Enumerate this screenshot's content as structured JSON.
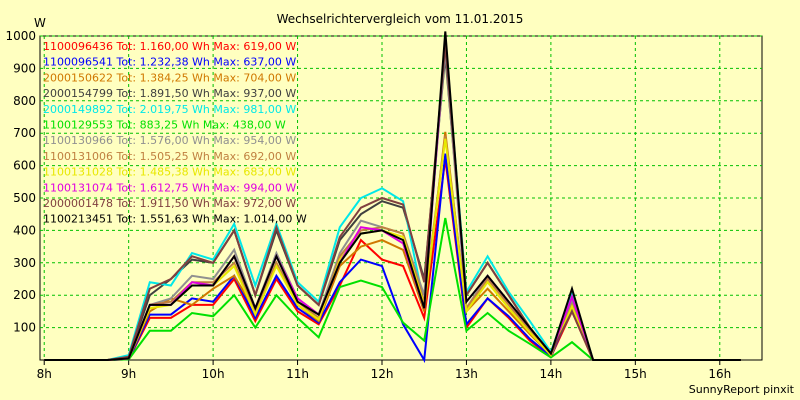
{
  "chart_data": {
    "type": "line",
    "title": "Wechselrichtervergleich vom 11.01.2015",
    "ylabel": "W",
    "xlabel": "",
    "ylim": [
      0,
      1000
    ],
    "xlim": [
      7.95,
      16.5
    ],
    "yticks": [
      100,
      200,
      300,
      400,
      500,
      600,
      700,
      800,
      900,
      1000
    ],
    "xticks": [
      "8h",
      "9h",
      "10h",
      "11h",
      "12h",
      "13h",
      "14h",
      "15h",
      "16h"
    ],
    "grid": true,
    "legend_position": "top-left",
    "x": [
      8.0,
      8.25,
      8.5,
      8.75,
      9.0,
      9.25,
      9.5,
      9.75,
      10.0,
      10.25,
      10.5,
      10.75,
      11.0,
      11.25,
      11.5,
      11.75,
      12.0,
      12.25,
      12.5,
      12.75,
      13.0,
      13.25,
      13.5,
      13.75,
      14.0,
      14.25,
      14.5,
      14.75,
      15.0,
      15.25,
      15.5,
      15.75,
      16.0,
      16.25
    ],
    "series": [
      {
        "name": "1100096436 Tot: 1.160,00 Wh Max: 619,00 W",
        "color": "#ff0000",
        "values": [
          0,
          0,
          0,
          0,
          2,
          130,
          130,
          170,
          170,
          250,
          120,
          250,
          150,
          110,
          230,
          370,
          310,
          290,
          130,
          620,
          100,
          190,
          130,
          60,
          10,
          150,
          0,
          0,
          0,
          0,
          0,
          0,
          0,
          0
        ]
      },
      {
        "name": "1100096541 Tot: 1.232,38 Wh Max: 637,00 W",
        "color": "#0000ff",
        "values": [
          0,
          0,
          0,
          0,
          2,
          140,
          140,
          190,
          180,
          260,
          130,
          260,
          160,
          115,
          240,
          310,
          290,
          110,
          0,
          637,
          110,
          190,
          135,
          65,
          12,
          160,
          0,
          0,
          0,
          0,
          0,
          0,
          0,
          0
        ]
      },
      {
        "name": "2000150622 Tot: 1.384,25 Wh Max: 704,00 W",
        "color": "#d07800",
        "values": [
          0,
          0,
          0,
          0,
          5,
          150,
          190,
          170,
          220,
          260,
          150,
          300,
          170,
          120,
          290,
          350,
          370,
          340,
          150,
          704,
          150,
          220,
          150,
          80,
          15,
          170,
          0,
          0,
          0,
          0,
          0,
          0,
          0,
          0
        ]
      },
      {
        "name": "2000154799 Tot: 1.891,50 Wh Max: 937,00 W",
        "color": "#404040",
        "values": [
          0,
          0,
          0,
          0,
          10,
          200,
          250,
          310,
          300,
          400,
          200,
          400,
          230,
          170,
          370,
          450,
          490,
          470,
          250,
          937,
          200,
          300,
          200,
          100,
          20,
          200,
          0,
          0,
          0,
          0,
          0,
          0,
          0,
          0
        ]
      },
      {
        "name": "2000149892 Tot: 2.019,75 Wh Max: 981,00 W",
        "color": "#00e8e8",
        "values": [
          0,
          0,
          0,
          0,
          15,
          240,
          230,
          330,
          310,
          420,
          230,
          420,
          240,
          180,
          410,
          500,
          530,
          490,
          170,
          981,
          210,
          320,
          210,
          120,
          25,
          210,
          0,
          0,
          0,
          0,
          0,
          0,
          0,
          0
        ]
      },
      {
        "name": "1100129553 Tot: 883,25 Wh Max: 438,00 W",
        "color": "#00e000",
        "values": [
          0,
          0,
          0,
          0,
          2,
          90,
          90,
          145,
          135,
          200,
          100,
          200,
          130,
          70,
          225,
          245,
          225,
          115,
          60,
          438,
          90,
          145,
          90,
          50,
          8,
          55,
          0,
          0,
          0,
          0,
          0,
          0,
          0,
          0
        ]
      },
      {
        "name": "1100130966 Tot: 1.576,00 Wh Max: 954,00 W",
        "color": "#909090",
        "values": [
          0,
          0,
          0,
          0,
          5,
          170,
          190,
          260,
          250,
          340,
          160,
          330,
          190,
          140,
          330,
          430,
          410,
          390,
          200,
          954,
          160,
          260,
          175,
          90,
          15,
          180,
          0,
          0,
          0,
          0,
          0,
          0,
          0,
          0
        ]
      },
      {
        "name": "1100131006 Tot: 1.505,25 Wh Max: 692,00 W",
        "color": "#c08040",
        "values": [
          0,
          0,
          0,
          0,
          5,
          170,
          180,
          240,
          240,
          300,
          150,
          300,
          180,
          130,
          320,
          400,
          410,
          390,
          180,
          692,
          160,
          250,
          170,
          90,
          15,
          170,
          0,
          0,
          0,
          0,
          0,
          0,
          0,
          0
        ]
      },
      {
        "name": "1100131028 Tot: 1.485,38 Wh Max: 683,00 W",
        "color": "#e8e800",
        "values": [
          0,
          0,
          0,
          0,
          5,
          160,
          170,
          230,
          230,
          290,
          140,
          290,
          170,
          125,
          310,
          390,
          400,
          380,
          170,
          683,
          150,
          240,
          160,
          85,
          15,
          165,
          0,
          0,
          0,
          0,
          0,
          0,
          0,
          0
        ]
      },
      {
        "name": "1100131074 Tot: 1.612,75 Wh Max: 994,00 W",
        "color": "#e000e0",
        "values": [
          0,
          0,
          0,
          0,
          5,
          170,
          170,
          240,
          230,
          320,
          160,
          320,
          190,
          140,
          300,
          410,
          400,
          360,
          160,
          994,
          180,
          260,
          180,
          100,
          20,
          195,
          0,
          0,
          0,
          0,
          0,
          0,
          0,
          0
        ]
      },
      {
        "name": "2000001478 Tot: 1.911,50 Wh Max: 972,00 W",
        "color": "#804040",
        "values": [
          0,
          0,
          0,
          0,
          10,
          220,
          250,
          320,
          300,
          400,
          200,
          410,
          230,
          170,
          380,
          470,
          500,
          480,
          240,
          972,
          200,
          300,
          200,
          100,
          20,
          150,
          0,
          0,
          0,
          0,
          0,
          0,
          0,
          0
        ]
      },
      {
        "name": "1100213451 Tot: 1.551,63 Wh Max: 1.014,00 W",
        "color": "#000000",
        "values": [
          0,
          0,
          0,
          0,
          5,
          170,
          170,
          230,
          230,
          320,
          160,
          320,
          180,
          140,
          300,
          390,
          400,
          370,
          160,
          1014,
          180,
          260,
          180,
          100,
          20,
          220,
          0,
          0,
          0,
          0,
          0,
          0,
          0,
          0
        ]
      }
    ]
  },
  "footer": "SunnyReport pinxit"
}
